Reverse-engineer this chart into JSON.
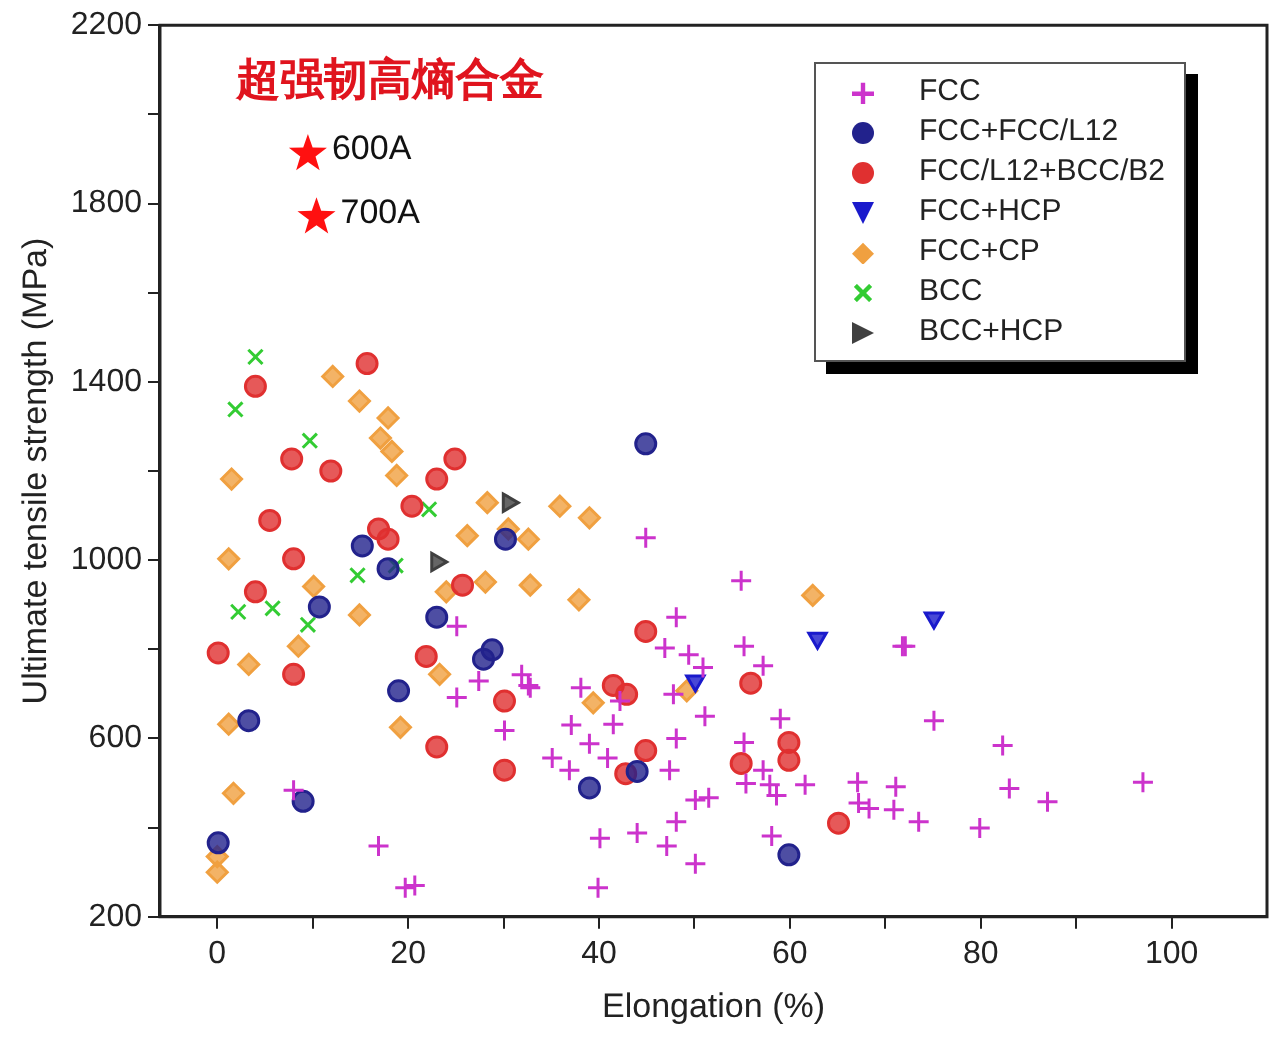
{
  "chart_data": {
    "type": "scatter",
    "xlabel": "Elongation (%)",
    "ylabel": "Ultimate tensile strength (MPa)",
    "xlim": [
      -6,
      110
    ],
    "ylim": [
      200,
      2200
    ],
    "xticks": [
      0,
      {
        "value": 10,
        "label": null
      },
      20,
      {
        "value": 30,
        "label": null
      },
      40,
      {
        "value": 50,
        "label": null
      },
      60,
      {
        "value": 70,
        "label": null
      },
      80,
      {
        "value": 90,
        "label": null
      },
      100
    ],
    "yticks": [
      {
        "value": 200,
        "label": "200"
      },
      {
        "value": 400,
        "label": null
      },
      600,
      {
        "value": 800,
        "label": null
      },
      1000,
      {
        "value": 1200,
        "label": null
      },
      1400,
      {
        "value": 1600,
        "label": null
      },
      1800,
      {
        "value": 2000,
        "label": null
      },
      2200
    ],
    "grid": false,
    "legend": "top right",
    "annotations": [
      "超强韧高熵合金",
      {
        "text": "600A",
        "x": 9.5,
        "y": 1911
      },
      {
        "text": "700A",
        "x": 10.4,
        "y": 1769
      }
    ],
    "series": [
      {
        "name": "FCC",
        "color": "#cc33cc",
        "marker": "plus",
        "x": [
          25.1,
          31.9,
          32.8,
          27.4,
          25.1,
          30.1,
          8.0,
          16.9,
          19.7,
          20.7,
          44.9,
          54.9,
          48.1,
          46.9,
          49.4,
          55.2,
          50.9,
          57.2,
          71.8,
          47.8,
          42.2,
          38.1,
          37.1,
          41.5,
          51.1,
          59.0,
          48.1,
          55.2,
          39.0,
          35.1,
          36.9,
          40.9,
          47.4,
          57.2,
          55.4,
          57.9,
          61.6,
          58.6,
          50.1,
          51.5,
          48.1,
          40.1,
          44.0,
          47.1,
          50.1,
          58.1,
          67.1,
          67.2,
          68.3,
          71.1,
          70.9,
          39.9,
          32.6,
          72.1,
          75.1,
          82.3,
          83.0,
          87.0,
          97.0,
          73.5,
          79.9
        ],
        "values": [
          852,
          743,
          714,
          729,
          692,
          618,
          484,
          359,
          265,
          270,
          1050,
          954,
          872,
          803,
          788,
          807,
          759,
          763,
          807,
          699,
          684,
          714,
          630,
          632,
          650,
          644,
          600,
          591,
          588,
          556,
          529,
          556,
          529,
          529,
          499,
          496,
          496,
          472,
          462,
          467,
          413,
          376,
          388,
          359,
          319,
          381,
          502,
          455,
          443,
          492,
          440,
          265,
          719,
          807,
          640,
          584,
          488,
          458,
          502,
          413,
          399
        ]
      },
      {
        "name": "FCC+FCC/L12",
        "color": "#22228c",
        "marker": "circle",
        "x": [
          44.9,
          15.2,
          17.9,
          10.7,
          23.0,
          27.9,
          28.8,
          19.0,
          3.3,
          9.0,
          0.1,
          30.2,
          39.0,
          44.0,
          59.9
        ],
        "values": [
          1261,
          1032,
          981,
          895,
          872,
          778,
          799,
          707,
          640,
          459,
          366,
          1047,
          489,
          526,
          339
        ]
      },
      {
        "name": "FCC/L12+BCC/B2",
        "color": "#e03030",
        "marker": "circle",
        "x": [
          15.7,
          4.0,
          7.8,
          11.9,
          23.0,
          24.9,
          5.5,
          8.0,
          16.9,
          17.9,
          20.4,
          4.0,
          0.1,
          8.0,
          21.9,
          25.7,
          23.0,
          30.1,
          30.1,
          44.9,
          41.5,
          42.9,
          55.9,
          44.9,
          42.8,
          54.9,
          59.9,
          59.9,
          65.1
        ],
        "values": [
          1441,
          1390,
          1227,
          1200,
          1182,
          1227,
          1089,
          1003,
          1070,
          1047,
          1121,
          929,
          792,
          744,
          784,
          944,
          581,
          684,
          529,
          840,
          719,
          699,
          724,
          573,
          521,
          544,
          591,
          551,
          410
        ]
      },
      {
        "name": "FCC+HCP",
        "color": "#1a1acc",
        "marker": "triangle-down",
        "x": [
          62.9,
          75.1,
          50.1
        ],
        "values": [
          825,
          870,
          729
        ]
      },
      {
        "name": "FCC+CP",
        "color": "#f0a040",
        "marker": "diamond",
        "x": [
          12.1,
          14.9,
          17.9,
          17.1,
          18.3,
          18.8,
          1.5,
          1.2,
          10.1,
          14.9,
          8.5,
          3.3,
          1.2,
          1.7,
          0,
          0,
          19.2,
          23.3,
          24.0,
          26.2,
          28.3,
          30.5,
          28.1,
          32.6,
          32.8,
          35.9,
          39.0,
          37.9,
          39.4,
          49.2,
          62.4
        ],
        "values": [
          1412,
          1357,
          1319,
          1274,
          1244,
          1190,
          1182,
          1003,
          941,
          877,
          807,
          766,
          632,
          477,
          335,
          300,
          625,
          744,
          929,
          1055,
          1129,
          1070,
          951,
          1047,
          944,
          1121,
          1095,
          911,
          680,
          707,
          921
        ]
      },
      {
        "name": "BCC",
        "color": "#33cc33",
        "marker": "cross",
        "x": [
          4.0,
          1.9,
          9.7,
          22.2,
          14.7,
          18.7,
          2.2,
          5.8,
          9.5
        ],
        "values": [
          1456,
          1338,
          1268,
          1114,
          966,
          988,
          884,
          892,
          855
        ]
      },
      {
        "name": "BCC+HCP",
        "color": "#404040",
        "marker": "triangle-right",
        "x": [
          30.5,
          23.0
        ],
        "values": [
          1129,
          996
        ]
      },
      {
        "color": "#ff1010",
        "marker": "star",
        "x": [
          9.5,
          10.4
        ],
        "values": [
          1911,
          1769
        ]
      }
    ]
  }
}
